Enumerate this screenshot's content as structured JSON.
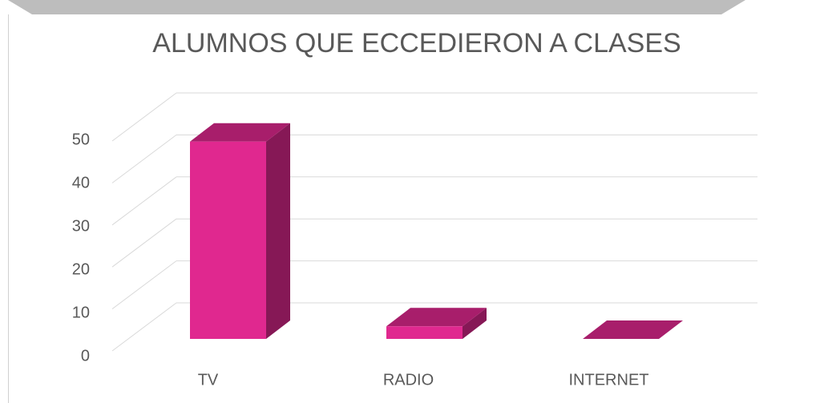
{
  "chart_data": {
    "type": "bar3d",
    "title": "ALUMNOS QUE ECCEDIERON A CLASES",
    "categories": [
      "TV",
      "RADIO",
      "INTERNET"
    ],
    "values": [
      47,
      3,
      0
    ],
    "color": "#e0288f",
    "ylim": [
      0,
      50
    ],
    "yticks": [
      0,
      10,
      20,
      30,
      40,
      50
    ],
    "grid": true
  }
}
